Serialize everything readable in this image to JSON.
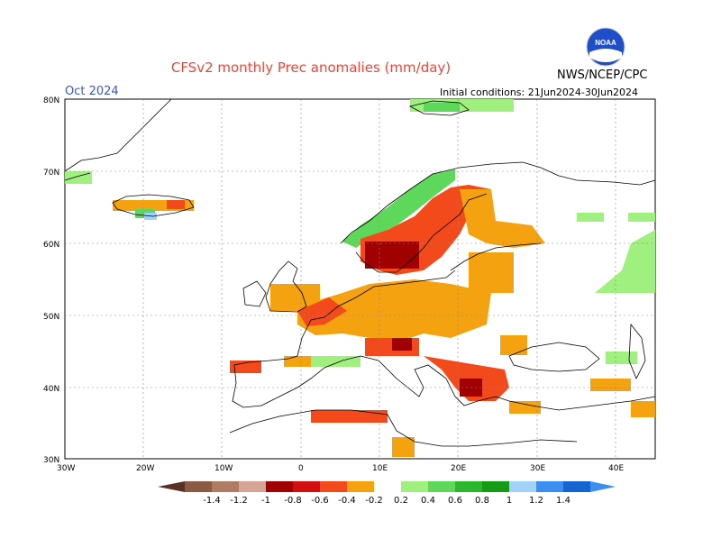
{
  "title": "CFSv2 monthly Prec anomalies (mm/day)",
  "month": "Oct 2024",
  "initial_conditions": "Initial conditions: 21Jun2024-30Jun2024",
  "agency": "NWS/NCEP/CPC",
  "logo_text": "NOAA",
  "lat_labels": [
    "80N",
    "70N",
    "60N",
    "50N",
    "40N",
    "30N"
  ],
  "lon_labels": [
    "30W",
    "20W",
    "10W",
    "0",
    "10E",
    "20E",
    "30E",
    "40E"
  ],
  "legend": {
    "labels": [
      "-1.4",
      "-1.2",
      "-1",
      "-0.8",
      "-0.6",
      "-0.4",
      "-0.2",
      "0.2",
      "0.4",
      "0.6",
      "0.8",
      "1",
      "1.2",
      "1.4"
    ],
    "colors": [
      "#8b5a44",
      "#b07b65",
      "#d6a596",
      "#a00000",
      "#d01010",
      "#f24a1a",
      "#f5a211",
      "#ffffff",
      "#a0f080",
      "#5ed85a",
      "#2cb82c",
      "#169b16",
      "#a0d2fa",
      "#3c8ef0",
      "#1464d2",
      "#5a3024"
    ]
  },
  "regions": [
    {
      "name": "scandinavia-dry",
      "color": "#f24a1a"
    },
    {
      "name": "europe-dry",
      "color": "#f5a211"
    },
    {
      "name": "norway-wet",
      "color": "#5ed85a"
    }
  ]
}
